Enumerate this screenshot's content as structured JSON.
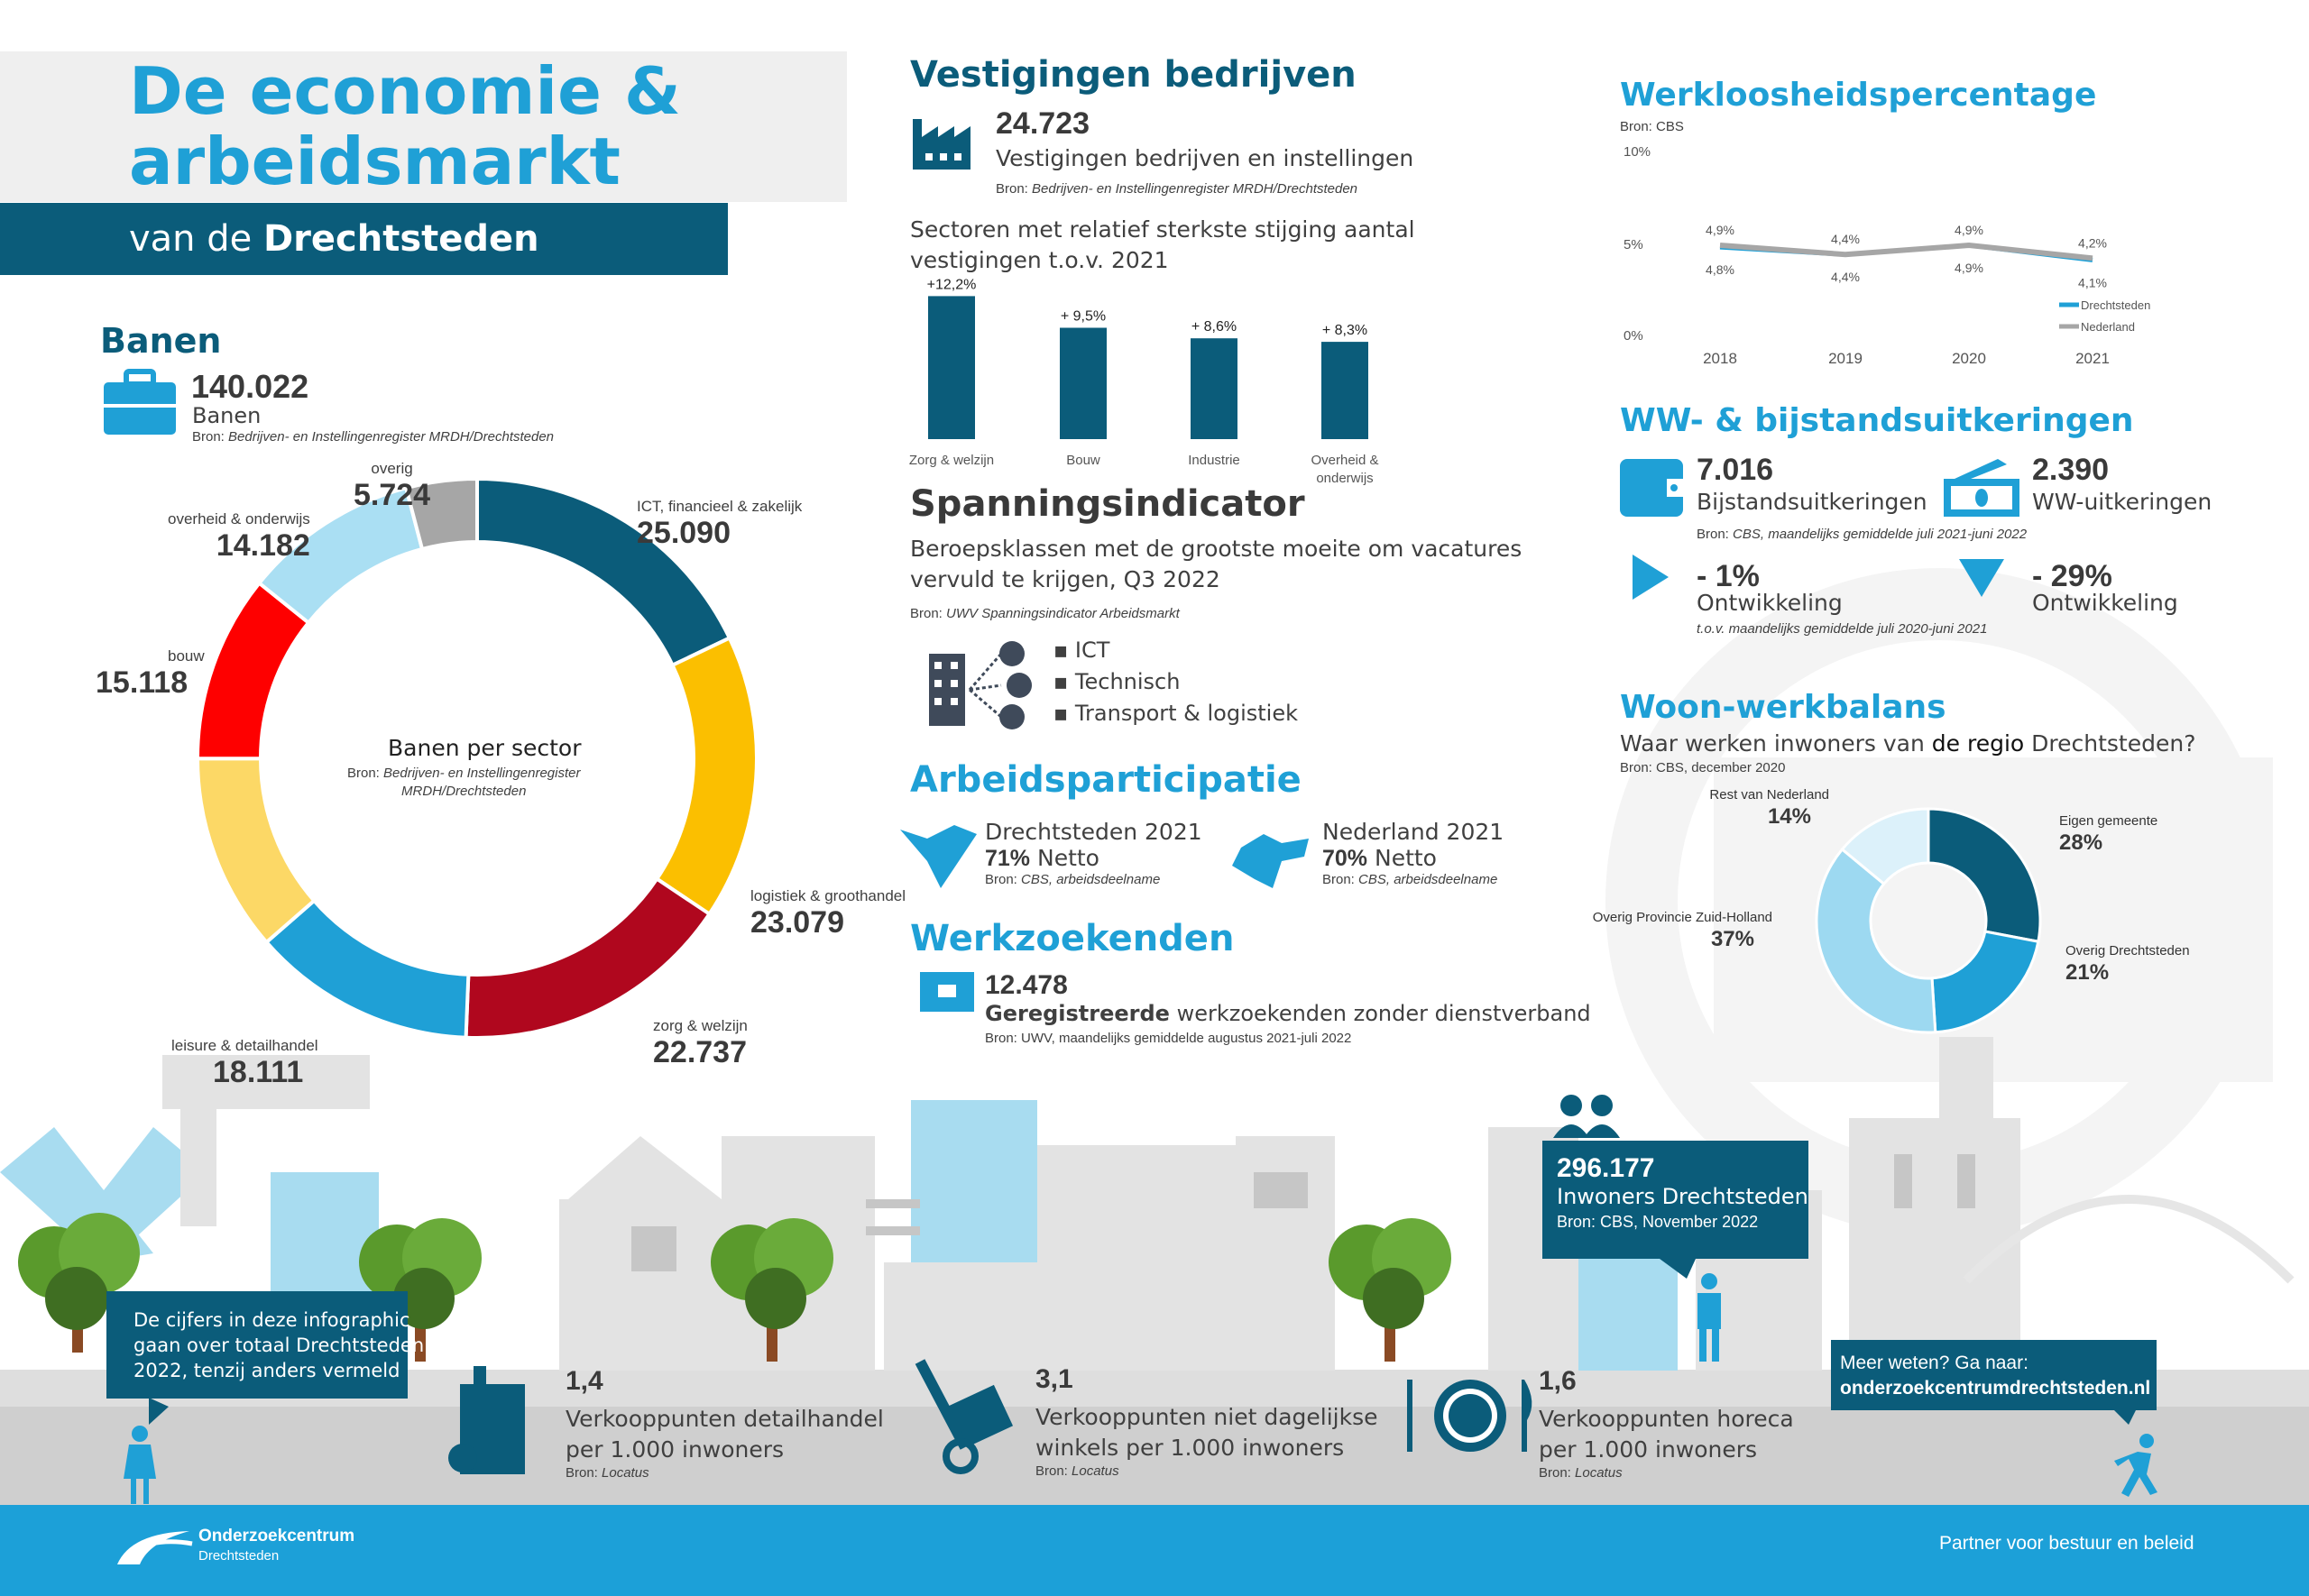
{
  "header": {
    "title_line1": "De economie &",
    "title_line2": "arbeidsmarkt",
    "subtitle_prefix": "van de",
    "subtitle_bold": "Drechtsteden"
  },
  "banen": {
    "heading": "Banen",
    "value": "140.022",
    "label": "Banen",
    "source_prefix": "Bron:",
    "source": "Bedrijven- en Instellingenregister MRDH/Drechtsteden",
    "donut_title": "Banen per sector",
    "donut_source_1": "Bedrijven- en Instellingenregister",
    "donut_source_2": "MRDH/Drechtsteden",
    "sectors": [
      {
        "label": "ICT, financieel & zakelijk",
        "display": "25.090",
        "value": 25090,
        "color": "#0b5c7a"
      },
      {
        "label": "logistiek & groothandel",
        "display": "23.079",
        "value": 23079,
        "color": "#fbbf00"
      },
      {
        "label": "zorg & welzijn",
        "display": "22.737",
        "value": 22737,
        "color": "#b0071e"
      },
      {
        "label": "leisure & detailhandel",
        "display": "18.111",
        "value": 18111,
        "color": "#1fa0d6"
      },
      {
        "label": "",
        "display": "",
        "value": 15981,
        "color": "#fcd866"
      },
      {
        "label": "bouw",
        "display": "15.118",
        "value": 15118,
        "color": "#fe0000"
      },
      {
        "label": "overheid & onderwijs",
        "display": "14.182",
        "value": 14182,
        "color": "#aadff3"
      },
      {
        "label": "overig",
        "display": "5.724",
        "value": 5724,
        "color": "#a6a6a6"
      }
    ]
  },
  "vestigingen": {
    "heading": "Vestigingen bedrijven",
    "value": "24.723",
    "label": "Vestigingen bedrijven en instellingen",
    "source_prefix": "Bron:",
    "source": "Bedrijven- en Instellingenregister MRDH/Drechtsteden",
    "chart_title_1": "Sectoren met relatief sterkste stijging aantal",
    "chart_title_2": "vestigingen t.o.v. 2021"
  },
  "spanning": {
    "heading": "Spanningsindicator",
    "desc_1": "Beroepsklassen met de grootste moeite om vacatures",
    "desc_2": "vervuld te krijgen, Q3 2022",
    "source_prefix": "Bron:",
    "source": "UWV Spanningsindicator Arbeidsmarkt",
    "items": [
      "ICT",
      "Technisch",
      "Transport & logistiek"
    ]
  },
  "participatie": {
    "heading": "Arbeidsparticipatie",
    "regions": [
      {
        "name": "Drechtsteden 2021",
        "value": "71%",
        "unit": "Netto",
        "source_prefix": "Bron:",
        "source": "CBS, arbeidsdeelname"
      },
      {
        "name": "Nederland 2021",
        "value": "70%",
        "unit": "Netto",
        "source_prefix": "Bron:",
        "source": "CBS, arbeidsdeelname"
      }
    ]
  },
  "werkzoekenden": {
    "heading": "Werkzoekenden",
    "value": "12.478",
    "label_bold": "Geregistreerde",
    "label_rest": "werkzoekenden zonder dienstverband",
    "source": "Bron: UWV, maandelijks gemiddelde augustus 2021-juli 2022"
  },
  "werkloosheid": {
    "heading": "Werkloosheidspercentage",
    "source": "Bron: CBS"
  },
  "uitkeringen": {
    "heading": "WW- & bijstandsuitkeringen",
    "bijstand": {
      "value": "7.016",
      "label": "Bijstandsuitkeringen",
      "change": "- 1%",
      "change_label": "Ontwikkeling",
      "change_value": -1
    },
    "ww": {
      "value": "2.390",
      "label": "WW-uitkeringen",
      "change": "- 29%",
      "change_label": "Ontwikkeling",
      "change_value": -29
    },
    "source_prefix": "Bron:",
    "source": "CBS, maandelijks gemiddelde juli 2021-juni 2022",
    "note": "t.o.v. maandelijks gemiddelde juli 2020-juni 2021"
  },
  "woonwerk": {
    "heading": "Woon-werkbalans",
    "question_1": "Waar werken inwoners van",
    "question_bold": "de regio",
    "question_2": "Drechtsteden?",
    "source": "Bron: CBS, december 2020"
  },
  "bottom": {
    "callout": [
      "De cijfers in deze infographic",
      "gaan over totaal Drechtsteden",
      "2022, tenzij anders vermeld"
    ],
    "stats": [
      {
        "value": "1,4",
        "line1": "Verkooppunten detailhandel",
        "line2": "per 1.000 inwoners",
        "source_prefix": "Bron:",
        "source": "Locatus"
      },
      {
        "value": "3,1",
        "line1": "Verkooppunten niet dagelijkse",
        "line2": "winkels per 1.000 inwoners",
        "source_prefix": "Bron:",
        "source": "Locatus"
      },
      {
        "value": "1,6",
        "line1": "Verkooppunten horeca",
        "line2": "per 1.000 inwoners",
        "source_prefix": "Bron:",
        "source": "Locatus"
      }
    ],
    "inwoners": {
      "value": "296.177",
      "label": "Inwoners Drechtsteden",
      "source": "Bron: CBS, November 2022"
    },
    "meer": {
      "line1": "Meer weten? Ga naar:",
      "link": "onderzoekcentrumdrechtsteden.nl"
    }
  },
  "footer": {
    "logo_name": "Onderzoekcentrum",
    "logo_sub": "Drechtsteden",
    "tagline": "Partner voor bestuur en beleid"
  },
  "chart_data": [
    {
      "type": "bar",
      "title": "Sectoren met relatief sterkste stijging aantal vestigingen t.o.v. 2021",
      "categories": [
        "Zorg & welzijn",
        "Bouw",
        "Industrie",
        "Overheid & onderwijs"
      ],
      "category_lines": [
        [
          "Zorg & welzijn"
        ],
        [
          "Bouw"
        ],
        [
          "Industrie"
        ],
        [
          "Overheid &",
          "onderwijs"
        ]
      ],
      "values": [
        12.2,
        9.5,
        8.6,
        8.3
      ],
      "labels": [
        "+12,2%",
        "+ 9,5%",
        "+ 8,6%",
        "+ 8,3%"
      ],
      "color": "#0b5c7a"
    },
    {
      "type": "line",
      "title": "Werkloosheidspercentage",
      "x": [
        "2018",
        "2019",
        "2020",
        "2021"
      ],
      "yticks": [
        "10%",
        "5%",
        "0%"
      ],
      "ylim": [
        0,
        10
      ],
      "series": [
        {
          "name": "Drechtsteden",
          "values": [
            4.8,
            4.4,
            4.9,
            4.1
          ],
          "labels": [
            "4,8%",
            "4,4%",
            "4,9%",
            "4,1%"
          ],
          "color": "#1fa0d6"
        },
        {
          "name": "Nederland",
          "values": [
            4.9,
            4.4,
            4.9,
            4.2
          ],
          "labels": [
            "4,9%",
            "4,4%",
            "4,9%",
            "4,2%"
          ],
          "color": "#a6a6a6"
        }
      ],
      "legend": "bottom-right"
    },
    {
      "type": "pie",
      "title": "Waar werken inwoners van de regio Drechtsteden?",
      "slices": [
        {
          "name": "Eigen gemeente",
          "value": 28,
          "label": "28%",
          "color": "#0b5c7a"
        },
        {
          "name": "Overig Drechtsteden",
          "value": 21,
          "label": "21%",
          "color": "#1fa0d6"
        },
        {
          "name": "Overig Provincie Zuid-Holland",
          "value": 37,
          "label": "37%",
          "color": "#9dd9f1"
        },
        {
          "name": "Rest van Nederland",
          "value": 14,
          "label": "14%",
          "color": "#dcf1fa"
        }
      ]
    }
  ]
}
